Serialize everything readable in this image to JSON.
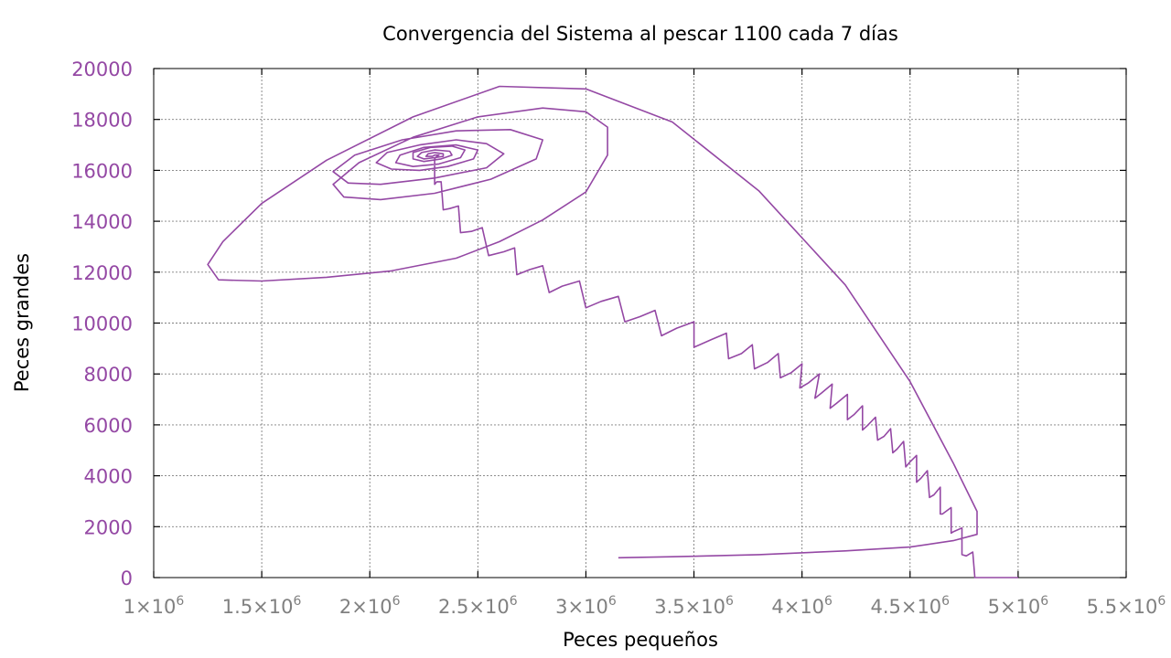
{
  "colors": {
    "series": "#9448a4",
    "tick_y": "#9448a4",
    "tick_x": "#808080",
    "grid": "#7f7f7f",
    "text": "#000000"
  },
  "chart_data": {
    "type": "line",
    "title": "Convergencia del Sistema al pescar 1100 cada 7 días",
    "xlabel": "Peces pequeños",
    "ylabel": "Peces grandes",
    "xlim": [
      1000000,
      5500000
    ],
    "ylim": [
      0,
      20000
    ],
    "x_scale": "linear",
    "grid": true,
    "legend": "none",
    "x_ticks": [
      {
        "value": 1000000,
        "mant": "1",
        "exp": "6"
      },
      {
        "value": 1500000,
        "mant": "1.5",
        "exp": "6"
      },
      {
        "value": 2000000,
        "mant": "2",
        "exp": "6"
      },
      {
        "value": 2500000,
        "mant": "2.5",
        "exp": "6"
      },
      {
        "value": 3000000,
        "mant": "3",
        "exp": "6"
      },
      {
        "value": 3500000,
        "mant": "3.5",
        "exp": "6"
      },
      {
        "value": 4000000,
        "mant": "4",
        "exp": "6"
      },
      {
        "value": 4500000,
        "mant": "4.5",
        "exp": "6"
      },
      {
        "value": 5000000,
        "mant": "5",
        "exp": "6"
      },
      {
        "value": 5500000,
        "mant": "5.5",
        "exp": "6"
      }
    ],
    "y_ticks": [
      0,
      2000,
      4000,
      6000,
      8000,
      10000,
      12000,
      14000,
      16000,
      18000,
      20000
    ],
    "series": [
      {
        "points": [
          [
            5000000,
            0
          ],
          [
            4800000,
            0
          ],
          [
            4790000,
            1000
          ],
          [
            4760000,
            850
          ],
          [
            4740000,
            900
          ],
          [
            4740000,
            1950
          ],
          [
            4700000,
            1800
          ],
          [
            4690000,
            1750
          ],
          [
            4690000,
            2750
          ],
          [
            4650000,
            2500
          ],
          [
            4640000,
            2500
          ],
          [
            4640000,
            3550
          ],
          [
            4610000,
            3250
          ],
          [
            4590000,
            3150
          ],
          [
            4580000,
            4200
          ],
          [
            4550000,
            3900
          ],
          [
            4530000,
            3750
          ],
          [
            4530000,
            4800
          ],
          [
            4500000,
            4550
          ],
          [
            4480000,
            4350
          ],
          [
            4470000,
            5350
          ],
          [
            4440000,
            5050
          ],
          [
            4420000,
            4900
          ],
          [
            4410000,
            5850
          ],
          [
            4380000,
            5550
          ],
          [
            4350000,
            5400
          ],
          [
            4340000,
            6300
          ],
          [
            4300000,
            5950
          ],
          [
            4280000,
            5800
          ],
          [
            4280000,
            6750
          ],
          [
            4240000,
            6400
          ],
          [
            4210000,
            6200
          ],
          [
            4210000,
            7200
          ],
          [
            4160000,
            6850
          ],
          [
            4130000,
            6650
          ],
          [
            4140000,
            7600
          ],
          [
            4090000,
            7250
          ],
          [
            4060000,
            7050
          ],
          [
            4080000,
            8000
          ],
          [
            4030000,
            7650
          ],
          [
            3990000,
            7450
          ],
          [
            4000000,
            8400
          ],
          [
            3950000,
            8050
          ],
          [
            3900000,
            7850
          ],
          [
            3890000,
            8800
          ],
          [
            3840000,
            8450
          ],
          [
            3780000,
            8200
          ],
          [
            3770000,
            9150
          ],
          [
            3720000,
            8800
          ],
          [
            3660000,
            8600
          ],
          [
            3650000,
            9600
          ],
          [
            3580000,
            9350
          ],
          [
            3500000,
            9050
          ],
          [
            3500000,
            10050
          ],
          [
            3420000,
            9800
          ],
          [
            3350000,
            9500
          ],
          [
            3320000,
            10500
          ],
          [
            3250000,
            10250
          ],
          [
            3180000,
            10050
          ],
          [
            3150000,
            11050
          ],
          [
            3070000,
            10850
          ],
          [
            3000000,
            10600
          ],
          [
            2970000,
            11650
          ],
          [
            2890000,
            11450
          ],
          [
            2830000,
            11200
          ],
          [
            2800000,
            12250
          ],
          [
            2740000,
            12100
          ],
          [
            2680000,
            11900
          ],
          [
            2670000,
            12950
          ],
          [
            2620000,
            12800
          ],
          [
            2550000,
            12650
          ],
          [
            2520000,
            13750
          ],
          [
            2470000,
            13600
          ],
          [
            2420000,
            13550
          ],
          [
            2410000,
            14600
          ],
          [
            2370000,
            14500
          ],
          [
            2340000,
            14450
          ],
          [
            2330000,
            15550
          ],
          [
            2310000,
            15550
          ],
          [
            2300000,
            15450
          ],
          [
            2300000,
            16450
          ],
          [
            2310000,
            16550
          ],
          [
            2320000,
            16600
          ],
          [
            2300000,
            16600
          ],
          [
            2290000,
            16550
          ],
          [
            2260000,
            16550
          ],
          [
            2270000,
            16650
          ],
          [
            2300000,
            16700
          ],
          [
            2340000,
            16650
          ],
          [
            2340000,
            16550
          ],
          [
            2300000,
            16500
          ],
          [
            2250000,
            16450
          ],
          [
            2220000,
            16550
          ],
          [
            2240000,
            16700
          ],
          [
            2300000,
            16800
          ],
          [
            2370000,
            16750
          ],
          [
            2380000,
            16600
          ],
          [
            2330000,
            16450
          ],
          [
            2250000,
            16350
          ],
          [
            2200000,
            16450
          ],
          [
            2200000,
            16700
          ],
          [
            2280000,
            16900
          ],
          [
            2380000,
            16950
          ],
          [
            2440000,
            16800
          ],
          [
            2420000,
            16500
          ],
          [
            2320000,
            16250
          ],
          [
            2200000,
            16150
          ],
          [
            2120000,
            16300
          ],
          [
            2140000,
            16600
          ],
          [
            2250000,
            16900
          ],
          [
            2400000,
            17000
          ],
          [
            2500000,
            16800
          ],
          [
            2480000,
            16450
          ],
          [
            2360000,
            16150
          ],
          [
            2230000,
            16000
          ],
          [
            2100000,
            16050
          ],
          [
            2030000,
            16300
          ],
          [
            2080000,
            16700
          ],
          [
            2230000,
            17000
          ],
          [
            2400000,
            17200
          ],
          [
            2540000,
            17050
          ],
          [
            2620000,
            16650
          ],
          [
            2540000,
            16100
          ],
          [
            2300000,
            15700
          ],
          [
            2050000,
            15450
          ],
          [
            1900000,
            15500
          ],
          [
            1830000,
            15950
          ],
          [
            1930000,
            16600
          ],
          [
            2150000,
            17200
          ],
          [
            2400000,
            17550
          ],
          [
            2650000,
            17600
          ],
          [
            2800000,
            17200
          ],
          [
            2770000,
            16450
          ],
          [
            2560000,
            15650
          ],
          [
            2300000,
            15100
          ],
          [
            2050000,
            14850
          ],
          [
            1880000,
            14950
          ],
          [
            1830000,
            15450
          ],
          [
            1950000,
            16300
          ],
          [
            2200000,
            17300
          ],
          [
            2500000,
            18100
          ],
          [
            2800000,
            18450
          ],
          [
            3000000,
            18300
          ],
          [
            3100000,
            17700
          ],
          [
            3100000,
            16600
          ],
          [
            3000000,
            15150
          ],
          [
            2800000,
            14050
          ],
          [
            2600000,
            13200
          ],
          [
            2400000,
            12550
          ],
          [
            2100000,
            12050
          ],
          [
            1800000,
            11800
          ],
          [
            1500000,
            11650
          ],
          [
            1300000,
            11700
          ],
          [
            1250000,
            12300
          ],
          [
            1320000,
            13200
          ],
          [
            1500000,
            14700
          ],
          [
            1800000,
            16400
          ],
          [
            2200000,
            18100
          ],
          [
            2600000,
            19300
          ],
          [
            3000000,
            19200
          ],
          [
            3400000,
            17900
          ],
          [
            3800000,
            15200
          ],
          [
            4200000,
            11500
          ],
          [
            4500000,
            7700
          ],
          [
            4700000,
            4500
          ],
          [
            4810000,
            2600
          ],
          [
            4810000,
            1700
          ],
          [
            4700000,
            1450
          ],
          [
            4500000,
            1200
          ],
          [
            4200000,
            1050
          ],
          [
            3800000,
            900
          ],
          [
            3400000,
            820
          ],
          [
            3150000,
            780
          ]
        ]
      }
    ]
  }
}
